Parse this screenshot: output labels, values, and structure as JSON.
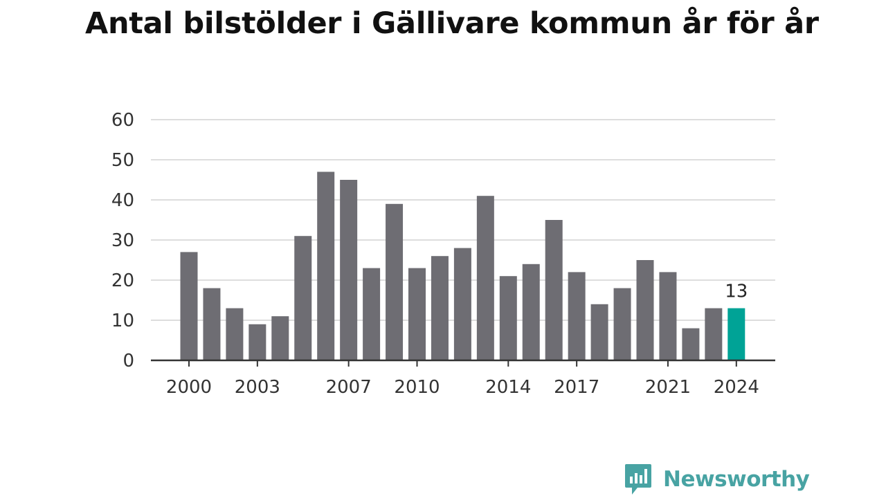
{
  "chart_data": {
    "type": "bar",
    "title": "Antal bilstölder i Gällivare kommun år för år",
    "xlabel": "",
    "ylabel": "",
    "ylim": [
      0,
      60
    ],
    "yticks": [
      0,
      10,
      20,
      30,
      40,
      50,
      60
    ],
    "grid": true,
    "categories": [
      "2000",
      "2001",
      "2002",
      "2003",
      "2004",
      "2005",
      "2006",
      "2007",
      "2008",
      "2009",
      "2010",
      "2011",
      "2012",
      "2013",
      "2014",
      "2015",
      "2016",
      "2017",
      "2018",
      "2019",
      "2020",
      "2021",
      "2022",
      "2023",
      "2024"
    ],
    "xticks": [
      "2000",
      "2003",
      "2007",
      "2010",
      "2014",
      "2017",
      "2021",
      "2024"
    ],
    "values": [
      27,
      18,
      13,
      9,
      11,
      31,
      47,
      45,
      23,
      39,
      23,
      26,
      28,
      41,
      21,
      24,
      35,
      22,
      14,
      18,
      25,
      22,
      8,
      13,
      13
    ],
    "highlight": {
      "category": "2024",
      "label": "13"
    },
    "colors": {
      "bar": "#6e6d73",
      "highlight": "#00a396",
      "grid": "#dddddd",
      "axis": "#333333"
    }
  },
  "branding": {
    "logo_text": "Newsworthy",
    "logo_icon": "newsworthy-chart-bubble-icon",
    "logo_color": "#48a3a3"
  }
}
